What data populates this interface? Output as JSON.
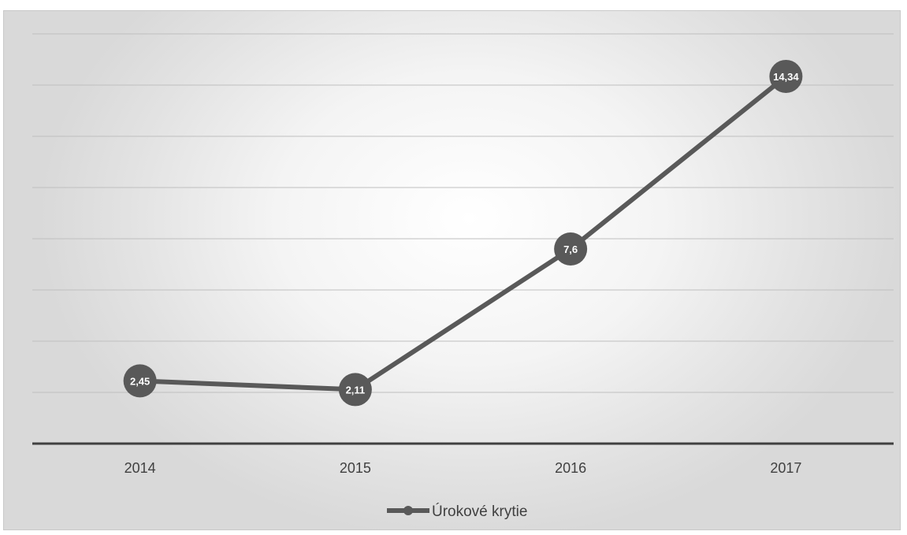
{
  "chart_data": {
    "type": "line",
    "categories": [
      "2014",
      "2015",
      "2016",
      "2017"
    ],
    "series": [
      {
        "name": "Úrokové krytie",
        "values": [
          2.45,
          2.11,
          7.6,
          14.34
        ],
        "labels": [
          "2,45",
          "2,11",
          "7,6",
          "14,34"
        ],
        "color": "#595959"
      }
    ],
    "title": "",
    "xlabel": "",
    "ylabel": "",
    "ylim": [
      0,
      16
    ],
    "y_gridlines": true,
    "legend_position": "bottom",
    "colors": {
      "line": "#595959",
      "gridline": "#bfbfbf",
      "axis": "#404040",
      "text": "#404040"
    }
  }
}
